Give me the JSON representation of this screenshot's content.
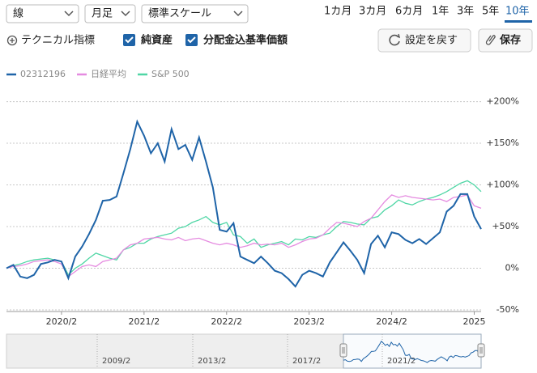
{
  "controls": {
    "dropdowns": [
      "線",
      "月足",
      "標準スケール"
    ],
    "periods": [
      "1カ月",
      "3カ月",
      "6カ月",
      "1年",
      "3年",
      "5年",
      "10年"
    ],
    "technical": "テクニカル指標",
    "checkboxes": [
      "純資産",
      "分配金込基準価額"
    ],
    "buttons": [
      "設定を戻す",
      "保存"
    ]
  },
  "navigator": {
    "labels": [
      "2009/2",
      "2013/2",
      "2017/2",
      "2021/2"
    ]
  },
  "chart_data": {
    "type": "line",
    "x": [
      "2019/6",
      "2019/7",
      "2019/8",
      "2019/9",
      "2019/10",
      "2019/11",
      "2019/12",
      "2020/1",
      "2020/2",
      "2020/3",
      "2020/4",
      "2020/5",
      "2020/6",
      "2020/7",
      "2020/8",
      "2020/9",
      "2020/10",
      "2020/11",
      "2020/12",
      "2021/1",
      "2021/2",
      "2021/3",
      "2021/4",
      "2021/5",
      "2021/6",
      "2021/7",
      "2021/8",
      "2021/9",
      "2021/10",
      "2021/11",
      "2021/12",
      "2022/1",
      "2022/2",
      "2022/3",
      "2022/4",
      "2022/5",
      "2022/6",
      "2022/7",
      "2022/8",
      "2022/9",
      "2022/10",
      "2022/11",
      "2022/12",
      "2023/1",
      "2023/2",
      "2023/3",
      "2023/4",
      "2023/5",
      "2023/6",
      "2023/7",
      "2023/8",
      "2023/9",
      "2023/10",
      "2023/11",
      "2023/12",
      "2024/1",
      "2024/2",
      "2024/3",
      "2024/4",
      "2024/5",
      "2024/6",
      "2024/7",
      "2024/8",
      "2024/9",
      "2024/10",
      "2024/11",
      "2024/12",
      "2025/1",
      "2025/2",
      "2025/3"
    ],
    "series": [
      {
        "name": "02312196",
        "color": "#1f64a8",
        "values": [
          0,
          4,
          -10,
          -12,
          -8,
          5,
          7,
          10,
          8,
          -12,
          14,
          26,
          41,
          58,
          81,
          82,
          86,
          114,
          143,
          176,
          159,
          138,
          150,
          128,
          167,
          143,
          148,
          130,
          157,
          128,
          97,
          46,
          44,
          54,
          14,
          10,
          6,
          14,
          6,
          -3,
          -6,
          -13,
          -22,
          -8,
          -3,
          -6,
          -10,
          7,
          19,
          31,
          21,
          10,
          -6,
          29,
          39,
          25,
          43,
          41,
          34,
          30,
          35,
          29,
          36,
          43,
          68,
          75,
          89,
          89,
          62,
          47
        ]
      },
      {
        "name": "日経平均",
        "color": "#e58be0",
        "values": [
          0,
          2,
          3,
          5,
          8,
          9,
          10,
          8,
          5,
          -10,
          -4,
          2,
          4,
          2,
          8,
          10,
          12,
          22,
          28,
          30,
          35,
          36,
          37,
          35,
          34,
          37,
          33,
          35,
          36,
          33,
          30,
          28,
          30,
          28,
          25,
          27,
          30,
          28,
          29,
          28,
          30,
          25,
          28,
          32,
          35,
          36,
          40,
          48,
          55,
          54,
          52,
          50,
          56,
          60,
          70,
          80,
          88,
          85,
          87,
          85,
          84,
          83,
          82,
          83,
          80,
          85,
          86,
          88,
          75,
          72
        ]
      },
      {
        "name": "S&P 500",
        "color": "#4fd6a5",
        "values": [
          0,
          3,
          5,
          8,
          10,
          11,
          12,
          10,
          8,
          -8,
          0,
          5,
          12,
          18,
          15,
          12,
          10,
          22,
          25,
          30,
          30,
          35,
          38,
          40,
          42,
          48,
          50,
          55,
          58,
          62,
          55,
          52,
          55,
          40,
          38,
          30,
          35,
          25,
          28,
          30,
          32,
          28,
          35,
          34,
          38,
          37,
          40,
          42,
          50,
          56,
          55,
          53,
          52,
          60,
          62,
          70,
          75,
          82,
          78,
          76,
          80,
          83,
          85,
          88,
          92,
          97,
          102,
          105,
          100,
          92
        ]
      }
    ],
    "xticks": [
      "2020/2",
      "2021/2",
      "2022/2",
      "2023/2",
      "2024/2",
      {
        "value": "2025/2",
        "label": "2025"
      }
    ],
    "ylim": [
      -52,
      220
    ],
    "yticks": [
      {
        "value": 200,
        "label": "+200%"
      },
      {
        "value": 150,
        "label": "+150%"
      },
      {
        "value": 100,
        "label": "+100%"
      },
      {
        "value": 50,
        "label": "+50%"
      },
      {
        "value": 0,
        "label": "0%"
      },
      {
        "value": -50,
        "label": "-50%"
      }
    ],
    "grid": true
  }
}
